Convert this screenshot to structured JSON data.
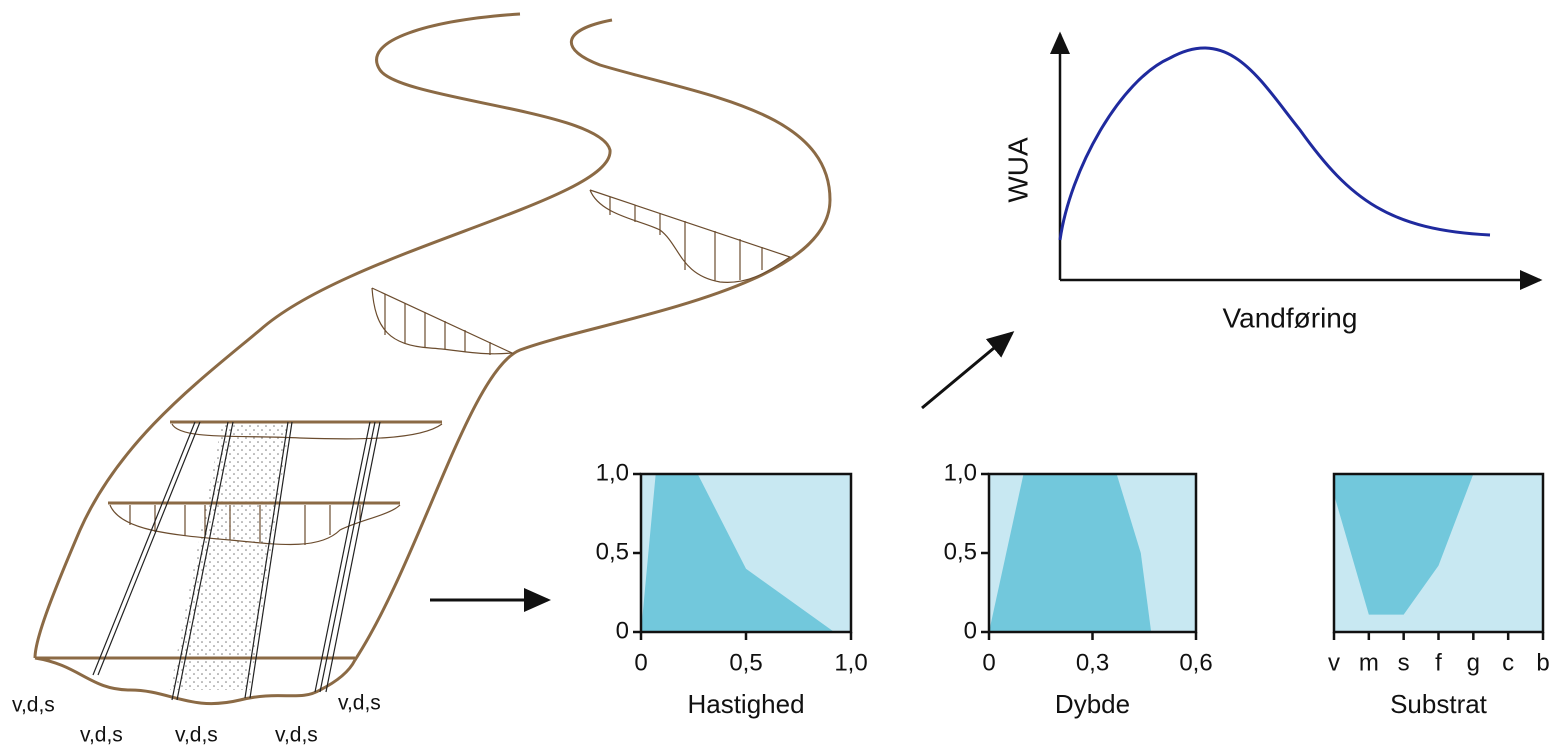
{
  "labels": [
    "v,d,s",
    "v,d,s",
    "v,d,s",
    "v,d,s",
    "v,d,s"
  ],
  "wua": {
    "y_label": "WUA",
    "x_label": "Vandføring"
  },
  "chart_data": [
    {
      "type": "area",
      "fill": "below",
      "x_label": "Hastighed",
      "x": [
        0,
        0.07,
        0.27,
        0.5,
        0.92
      ],
      "values": [
        0,
        1.0,
        1.0,
        0.4,
        0
      ],
      "xlim": [
        0,
        1.0
      ],
      "xticks": [
        0,
        {
          "value": 0.5,
          "label": "0,5"
        },
        {
          "value": 1.0,
          "label": "1,0"
        }
      ],
      "ylim": [
        0,
        1.0
      ],
      "yticks": [
        0,
        {
          "value": 0.5,
          "label": "0,5"
        },
        {
          "value": 1.0,
          "label": "1,0"
        }
      ],
      "color": "#72c8dc",
      "background": "#c8e8f2"
    },
    {
      "type": "area",
      "fill": "below",
      "x_label": "Dybde",
      "x": [
        0,
        0.1,
        0.37,
        0.44,
        0.47
      ],
      "values": [
        0,
        1.0,
        1.0,
        0.5,
        0
      ],
      "xlim": [
        0,
        0.6
      ],
      "xticks": [
        0,
        {
          "value": 0.3,
          "label": "0,3"
        },
        {
          "value": 0.6,
          "label": "0,6"
        }
      ],
      "ylim": [
        0,
        1.0
      ],
      "yticks": [
        0,
        {
          "value": 0.5,
          "label": "0,5"
        },
        {
          "value": 1.0,
          "label": "1,0"
        }
      ],
      "color": "#72c8dc",
      "background": "#c8e8f2"
    },
    {
      "type": "area",
      "fill": "above",
      "x_label": "Substrat",
      "categories": [
        "v",
        "m",
        "s",
        "f",
        "g",
        "c",
        "b"
      ],
      "values": [
        0.87,
        0.11,
        0.11,
        0.42,
        1.0,
        1.0,
        1.0
      ],
      "ylim": [
        0,
        1.0
      ],
      "color": "#72c8dc",
      "background": "#c8e8f2"
    }
  ]
}
